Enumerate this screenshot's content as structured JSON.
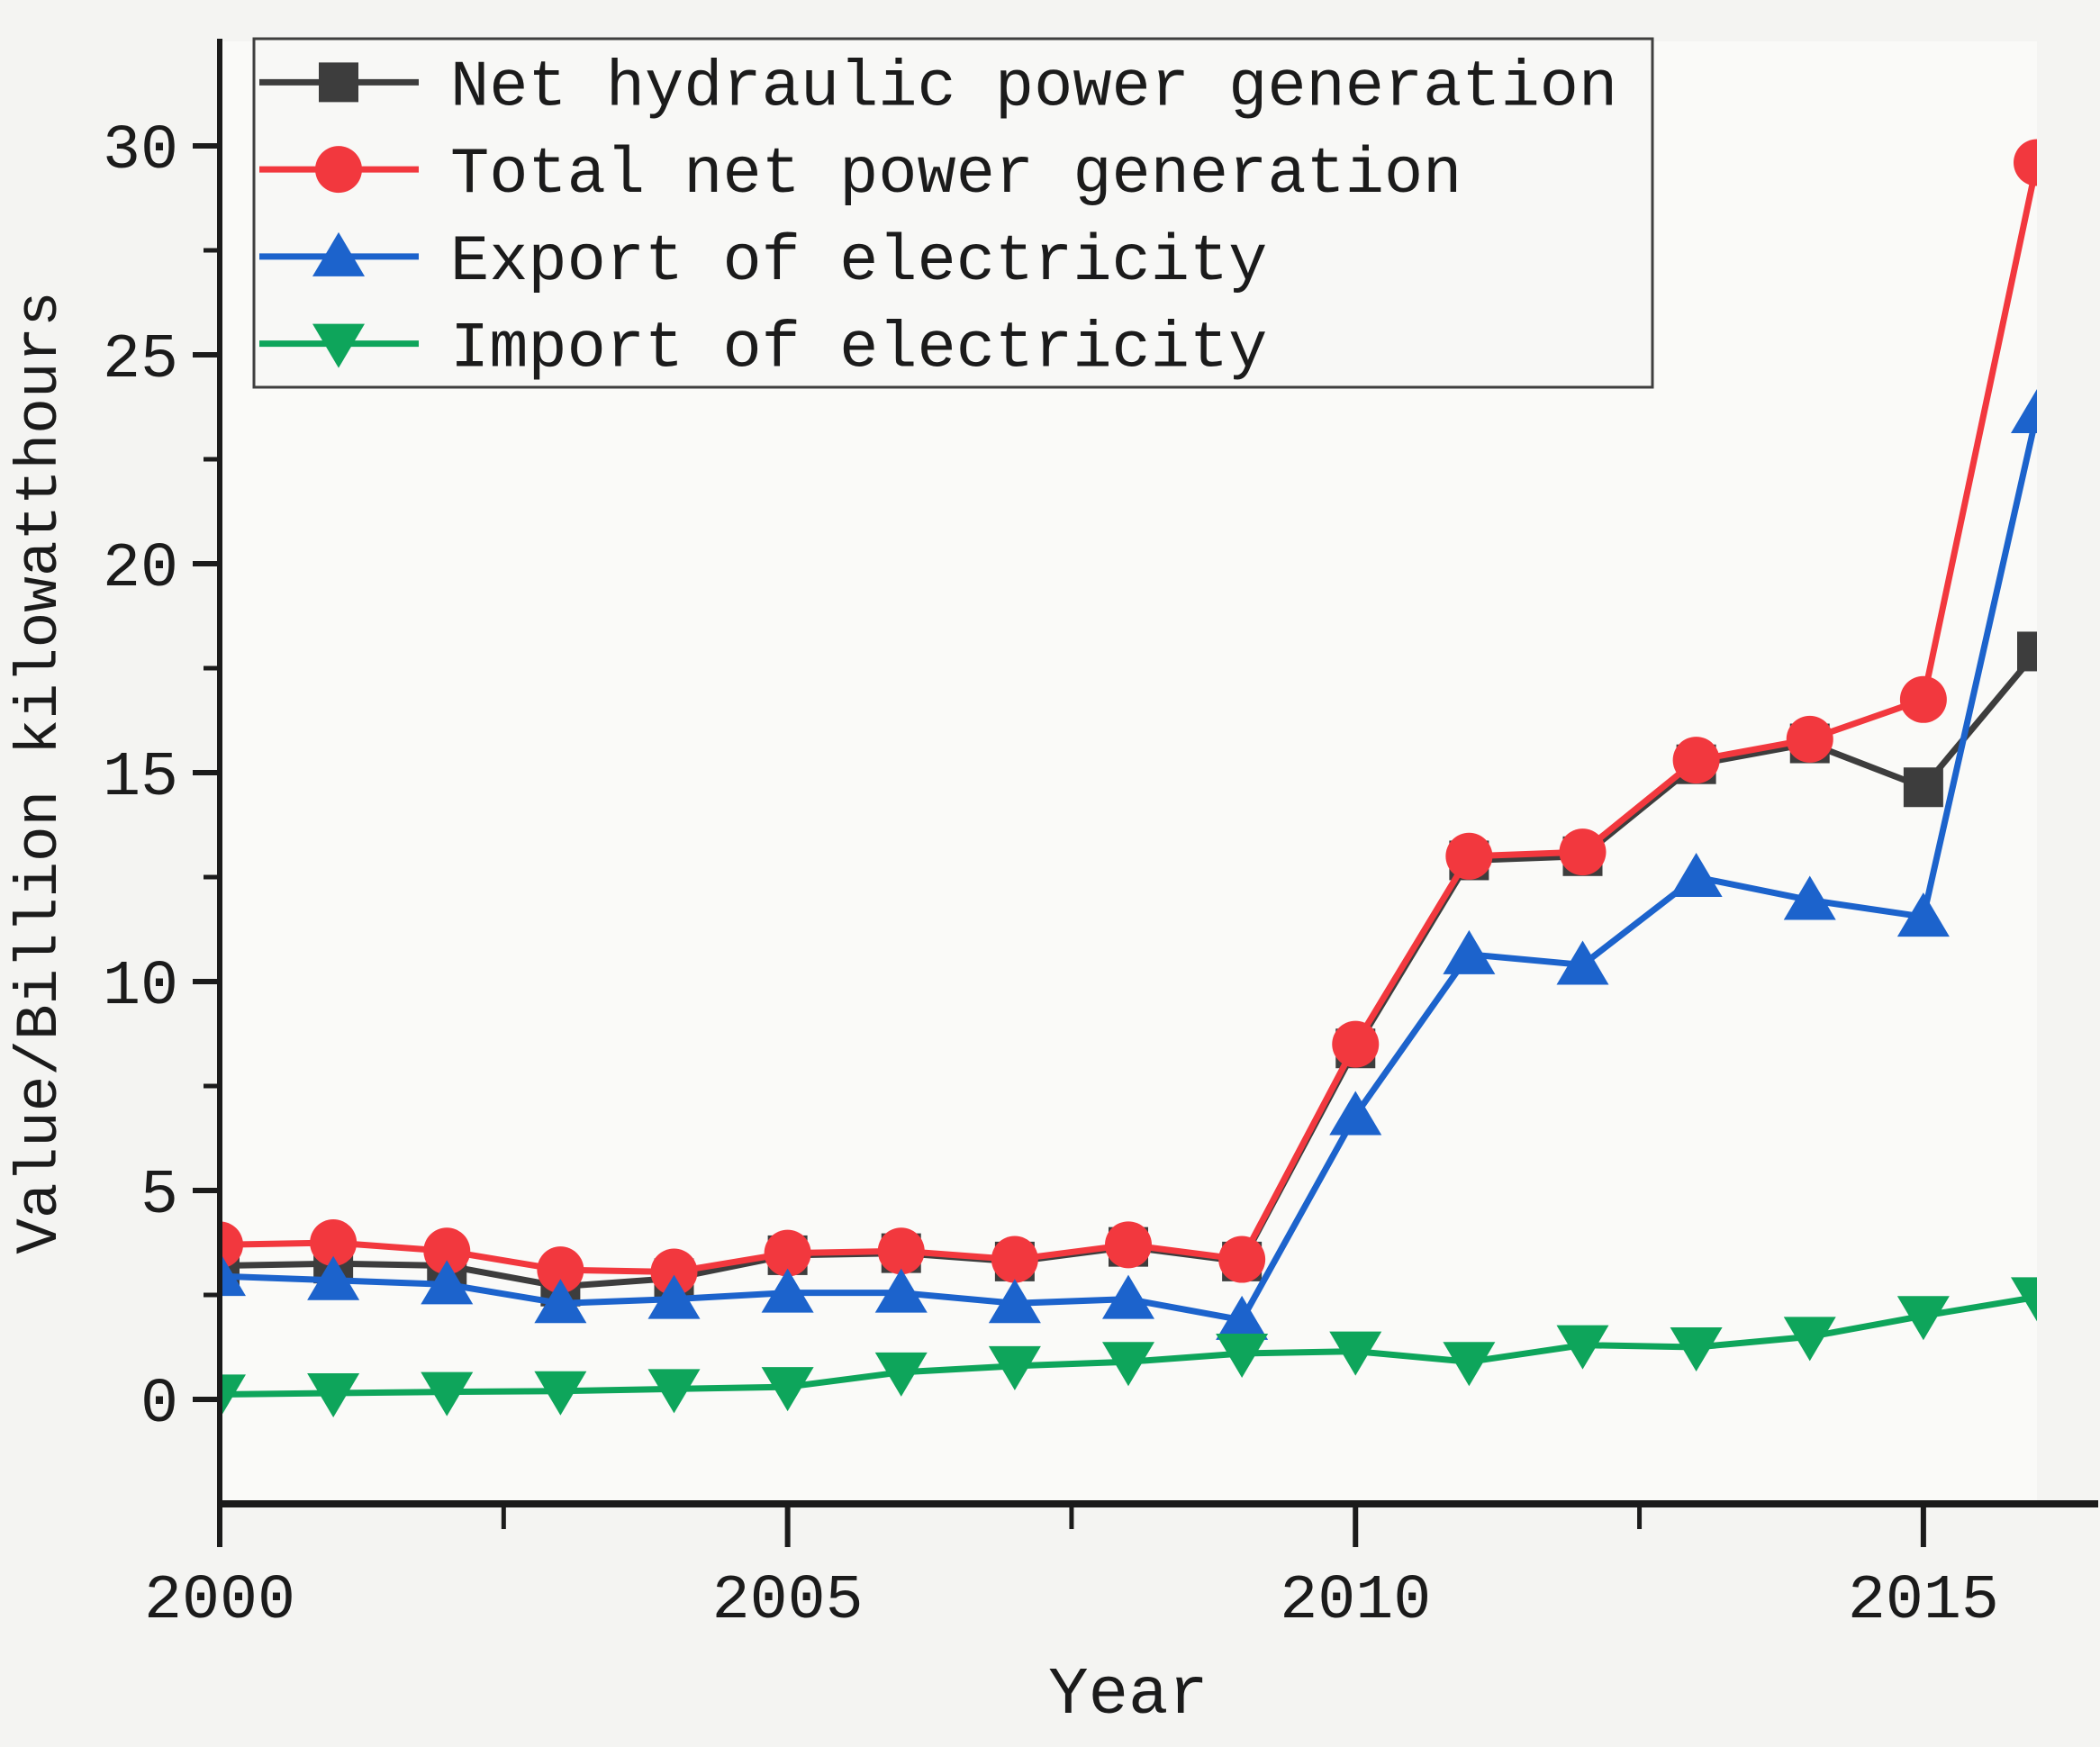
{
  "chart_data": {
    "type": "line",
    "title": "",
    "xlabel": "Year",
    "ylabel": "Value/Billion kilowatthours",
    "x": [
      2000,
      2001,
      2002,
      2003,
      2004,
      2005,
      2006,
      2007,
      2008,
      2009,
      2010,
      2011,
      2012,
      2013,
      2014,
      2015,
      2016
    ],
    "xlim": [
      2000,
      2016
    ],
    "ylim": [
      -2.5,
      32.5
    ],
    "x_ticks_major": [
      2000,
      2005,
      2010,
      2015
    ],
    "x_ticks_minor": [
      2002.5,
      2007.5,
      2012.5
    ],
    "y_ticks_major": [
      0,
      5,
      10,
      15,
      20,
      25,
      30
    ],
    "y_ticks_minor": [
      2.5,
      7.5,
      12.5,
      17.5,
      22.5,
      27.5
    ],
    "grid": false,
    "legend_position": "top-left-inside",
    "series": [
      {
        "name": "Net hydraulic power generation",
        "color": "#3d3d3d",
        "marker": "square",
        "values": [
          3.2,
          3.25,
          3.2,
          2.7,
          2.9,
          3.45,
          3.5,
          3.3,
          3.65,
          3.3,
          8.4,
          12.9,
          13.0,
          15.2,
          15.7,
          14.65,
          17.9
        ]
      },
      {
        "name": "Total net power generation",
        "color": "#f2383e",
        "marker": "circle",
        "values": [
          3.7,
          3.75,
          3.55,
          3.1,
          3.05,
          3.5,
          3.55,
          3.35,
          3.7,
          3.35,
          8.5,
          13.0,
          13.1,
          15.3,
          15.8,
          16.75,
          29.6
        ]
      },
      {
        "name": "Export of electricity",
        "color": "#1c63cc",
        "marker": "triangle-up",
        "values": [
          2.95,
          2.85,
          2.75,
          2.3,
          2.4,
          2.55,
          2.55,
          2.3,
          2.4,
          1.9,
          6.8,
          10.65,
          10.4,
          12.5,
          11.95,
          11.55,
          23.6
        ]
      },
      {
        "name": "Import of electricity",
        "color": "#0ea55b",
        "marker": "triangle-down",
        "values": [
          0.12,
          0.15,
          0.18,
          0.2,
          0.25,
          0.3,
          0.65,
          0.8,
          0.9,
          1.1,
          1.15,
          0.9,
          1.3,
          1.25,
          1.5,
          2.0,
          2.45
        ]
      }
    ],
    "colors": {
      "axis": "#1b1b1b",
      "plot_background": "#fafaf8",
      "figure_background": "#f4f4f2",
      "legend_background": "#f8f8f6",
      "legend_border": "#3f3f3f"
    }
  }
}
